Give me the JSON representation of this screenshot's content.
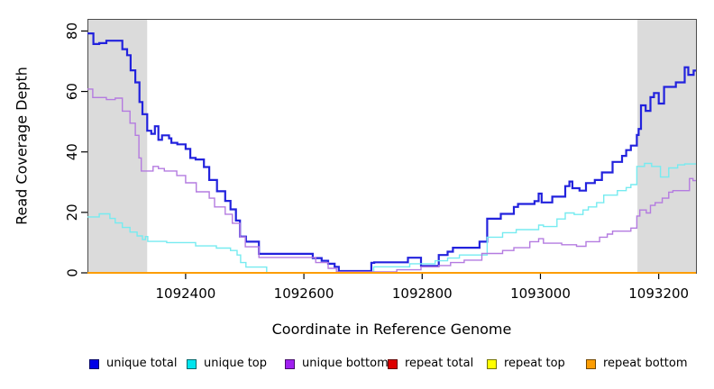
{
  "colors": {
    "background": "#ffffff",
    "shaded_region": "#dbdbdb",
    "plot_border": "#4d4d4d",
    "axis_line": "#000000",
    "axis_text": "#000000"
  },
  "chart_data": {
    "type": "line",
    "subtype": "step-post-coverage",
    "title": "",
    "xlabel": "Coordinate in Reference Genome",
    "ylabel": "Read Coverage Depth",
    "xlim": [
      1092234,
      1093263
    ],
    "ylim": [
      0,
      84
    ],
    "x_tick_values": [
      1092400,
      1092600,
      1092800,
      1093000,
      1093200
    ],
    "x_tick_labels": [
      "1092400",
      "1092600",
      "1092800",
      "1093000",
      "1093200"
    ],
    "y_tick_values": [
      0,
      20,
      40,
      60,
      80
    ],
    "y_tick_labels": [
      "0",
      "20",
      "40",
      "60",
      "80"
    ],
    "grid": false,
    "legend_position": "bottom",
    "shaded_regions": [
      {
        "x0": 1092234,
        "x1": 1092335
      },
      {
        "x0": 1093164,
        "x1": 1093263
      }
    ],
    "series": [
      {
        "id": "unique-total",
        "name": "unique total",
        "color": "#2222dd",
        "width": 2.2,
        "points": [
          [
            1092234,
            79.2
          ],
          [
            1092244,
            75.7
          ],
          [
            1092254,
            76
          ],
          [
            1092266,
            76.8
          ],
          [
            1092293,
            74
          ],
          [
            1092301,
            72
          ],
          [
            1092307,
            67
          ],
          [
            1092315,
            63
          ],
          [
            1092322,
            56.5
          ],
          [
            1092327,
            52.5
          ],
          [
            1092335,
            47
          ],
          [
            1092342,
            46
          ],
          [
            1092348,
            48.5
          ],
          [
            1092354,
            44
          ],
          [
            1092360,
            45.5
          ],
          [
            1092372,
            44.5
          ],
          [
            1092376,
            43
          ],
          [
            1092386,
            42.5
          ],
          [
            1092400,
            41
          ],
          [
            1092408,
            38
          ],
          [
            1092417,
            37.5
          ],
          [
            1092431,
            35
          ],
          [
            1092440,
            30.7
          ],
          [
            1092453,
            27
          ],
          [
            1092467,
            23.8
          ],
          [
            1092476,
            21
          ],
          [
            1092485,
            17.3
          ],
          [
            1092492,
            12
          ],
          [
            1092502,
            10.3
          ],
          [
            1092524,
            6.3
          ],
          [
            1092615,
            4.9
          ],
          [
            1092630,
            4
          ],
          [
            1092641,
            3
          ],
          [
            1092652,
            2
          ],
          [
            1092659,
            0.6
          ],
          [
            1092714,
            3.3
          ],
          [
            1092719,
            3.5
          ],
          [
            1092776,
            5
          ],
          [
            1092798,
            2.3
          ],
          [
            1092828,
            5.9
          ],
          [
            1092843,
            7
          ],
          [
            1092852,
            8.3
          ],
          [
            1092897,
            10.3
          ],
          [
            1092910,
            17.9
          ],
          [
            1092933,
            19.5
          ],
          [
            1092955,
            21.8
          ],
          [
            1092962,
            22.8
          ],
          [
            1092990,
            23.7
          ],
          [
            1092997,
            26.2
          ],
          [
            1093002,
            23.3
          ],
          [
            1093020,
            25.2
          ],
          [
            1093042,
            28.7
          ],
          [
            1093049,
            30.2
          ],
          [
            1093054,
            28
          ],
          [
            1093066,
            27.2
          ],
          [
            1093077,
            29.7
          ],
          [
            1093092,
            30.7
          ],
          [
            1093104,
            33.2
          ],
          [
            1093122,
            36.7
          ],
          [
            1093138,
            38.7
          ],
          [
            1093145,
            40.6
          ],
          [
            1093153,
            42.1
          ],
          [
            1093163,
            45.6
          ],
          [
            1093166,
            47.6
          ],
          [
            1093170,
            55.4
          ],
          [
            1093178,
            53.6
          ],
          [
            1093186,
            58.1
          ],
          [
            1093192,
            59.5
          ],
          [
            1093200,
            56
          ],
          [
            1093209,
            61.5
          ],
          [
            1093229,
            63
          ],
          [
            1093244,
            68
          ],
          [
            1093250,
            65.5
          ],
          [
            1093259,
            66.9
          ]
        ]
      },
      {
        "id": "unique-top",
        "name": "unique top",
        "color": "#76ebf0",
        "width": 1.4,
        "points": [
          [
            1092234,
            18.5
          ],
          [
            1092254,
            19.5
          ],
          [
            1092272,
            18
          ],
          [
            1092281,
            16.5
          ],
          [
            1092293,
            15
          ],
          [
            1092306,
            13.5
          ],
          [
            1092318,
            12.2
          ],
          [
            1092327,
            11
          ],
          [
            1092332,
            12
          ],
          [
            1092336,
            10.4
          ],
          [
            1092368,
            10
          ],
          [
            1092417,
            8.9
          ],
          [
            1092452,
            8.2
          ],
          [
            1092476,
            7.4
          ],
          [
            1092487,
            5.9
          ],
          [
            1092493,
            3.4
          ],
          [
            1092502,
            1.9
          ],
          [
            1092537,
            0
          ],
          [
            1092718,
            2
          ],
          [
            1092779,
            3
          ],
          [
            1092822,
            4
          ],
          [
            1092843,
            4.9
          ],
          [
            1092863,
            5.9
          ],
          [
            1092910,
            11.8
          ],
          [
            1092936,
            13.3
          ],
          [
            1092959,
            14.3
          ],
          [
            1092997,
            15.8
          ],
          [
            1093005,
            15.3
          ],
          [
            1093028,
            17.8
          ],
          [
            1093042,
            19.8
          ],
          [
            1093057,
            19.3
          ],
          [
            1093072,
            20.8
          ],
          [
            1093081,
            21.8
          ],
          [
            1093095,
            23.2
          ],
          [
            1093107,
            25.7
          ],
          [
            1093130,
            27.2
          ],
          [
            1093145,
            28.2
          ],
          [
            1093153,
            29.2
          ],
          [
            1093163,
            35.2
          ],
          [
            1093176,
            36.2
          ],
          [
            1093188,
            35.2
          ],
          [
            1093203,
            31.7
          ],
          [
            1093217,
            34.7
          ],
          [
            1093232,
            35.7
          ],
          [
            1093244,
            36
          ]
        ]
      },
      {
        "id": "unique-bottom",
        "name": "unique bottom",
        "color": "#b47be0",
        "width": 1.4,
        "points": [
          [
            1092234,
            60.8
          ],
          [
            1092243,
            58
          ],
          [
            1092266,
            57.3
          ],
          [
            1092281,
            57.8
          ],
          [
            1092293,
            53.5
          ],
          [
            1092306,
            49.5
          ],
          [
            1092315,
            45.5
          ],
          [
            1092321,
            38
          ],
          [
            1092325,
            33.7
          ],
          [
            1092345,
            35.2
          ],
          [
            1092354,
            34.5
          ],
          [
            1092364,
            33.7
          ],
          [
            1092385,
            32.2
          ],
          [
            1092400,
            29.8
          ],
          [
            1092418,
            26.8
          ],
          [
            1092440,
            24.7
          ],
          [
            1092449,
            21.8
          ],
          [
            1092467,
            19.4
          ],
          [
            1092479,
            16.4
          ],
          [
            1092492,
            11.9
          ],
          [
            1092501,
            8.6
          ],
          [
            1092524,
            5.1
          ],
          [
            1092620,
            3.4
          ],
          [
            1092641,
            1.5
          ],
          [
            1092655,
            0.3
          ],
          [
            1092757,
            1
          ],
          [
            1092798,
            2
          ],
          [
            1092828,
            2.4
          ],
          [
            1092848,
            3.4
          ],
          [
            1092871,
            4.2
          ],
          [
            1092901,
            6.4
          ],
          [
            1092936,
            7.4
          ],
          [
            1092955,
            8.3
          ],
          [
            1092982,
            10.3
          ],
          [
            1092997,
            11.3
          ],
          [
            1093005,
            9.8
          ],
          [
            1093036,
            9.3
          ],
          [
            1093061,
            8.8
          ],
          [
            1093077,
            10.3
          ],
          [
            1093100,
            11.8
          ],
          [
            1093113,
            12.8
          ],
          [
            1093122,
            13.8
          ],
          [
            1093153,
            14.8
          ],
          [
            1093163,
            18.8
          ],
          [
            1093168,
            20.8
          ],
          [
            1093179,
            19.8
          ],
          [
            1093186,
            22.3
          ],
          [
            1093194,
            23.2
          ],
          [
            1093206,
            24.7
          ],
          [
            1093217,
            26.7
          ],
          [
            1093224,
            27.2
          ],
          [
            1093252,
            31.2
          ],
          [
            1093258,
            30.5
          ]
        ]
      },
      {
        "id": "repeat-total",
        "name": "repeat total",
        "color": "#dd0000",
        "width": 1.4,
        "points": [
          [
            1092234,
            0
          ]
        ]
      },
      {
        "id": "repeat-top",
        "name": "repeat top",
        "color": "#ffff00",
        "width": 1.4,
        "points": [
          [
            1092234,
            0
          ]
        ]
      },
      {
        "id": "repeat-bottom",
        "name": "repeat bottom",
        "color": "#fc9d03",
        "width": 2,
        "points": [
          [
            1092234,
            0
          ]
        ]
      }
    ]
  },
  "legend": {
    "items": [
      {
        "label": "unique total",
        "swatch": "#0000e6"
      },
      {
        "label": "unique top",
        "swatch": "#00e5ee"
      },
      {
        "label": "unique bottom",
        "swatch": "#a020f0"
      },
      {
        "label": "repeat total",
        "swatch": "#dd0000"
      },
      {
        "label": "repeat top",
        "swatch": "#ffff00"
      },
      {
        "label": "repeat bottom",
        "swatch": "#fc9d03"
      }
    ]
  }
}
